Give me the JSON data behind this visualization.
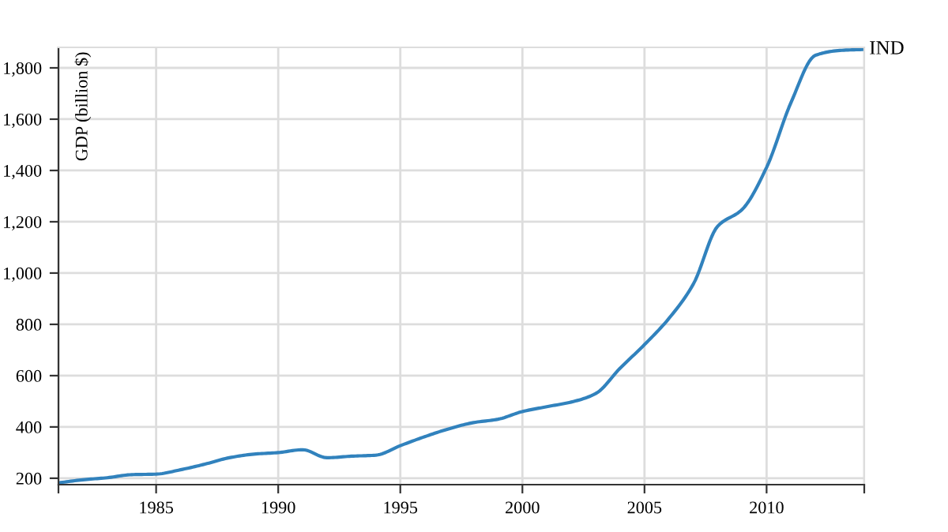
{
  "chart_data": {
    "type": "line",
    "ylabel": "GDP (billion $)",
    "x": [
      1981,
      1982,
      1983,
      1984,
      1985,
      1986,
      1987,
      1988,
      1989,
      1990,
      1991,
      1992,
      1993,
      1994,
      1995,
      1996,
      1997,
      1998,
      1999,
      2000,
      2001,
      2002,
      2003,
      2004,
      2005,
      2006,
      2007,
      2008,
      2009,
      2010,
      2011,
      2012,
      2013,
      2014
    ],
    "series": [
      {
        "name": "IND",
        "color": "#3182bd",
        "values": [
          182,
          194,
          202,
          214,
          216,
          233,
          255,
          280,
          294,
          300,
          311,
          280,
          286,
          290,
          327,
          362,
          393,
          417,
          430,
          460,
          479,
          497,
          530,
          629,
          721,
          823,
          957,
          1183,
          1248,
          1412,
          1665,
          1849,
          1868,
          1872
        ]
      }
    ],
    "xlim": [
      1981,
      2014
    ],
    "xticks": [
      {
        "value": 1981,
        "label": null
      },
      1985,
      1990,
      1995,
      2000,
      2005,
      2010,
      {
        "value": 2014,
        "label": null
      }
    ],
    "ylim": [
      175,
      1880
    ],
    "yticks": [
      200,
      400,
      600,
      800,
      {
        "value": 1000,
        "label": "1,000"
      },
      {
        "value": 1200,
        "label": "1,200"
      },
      {
        "value": 1400,
        "label": "1,400"
      },
      {
        "value": 1600,
        "label": "1,600"
      },
      {
        "value": 1800,
        "label": "1,800"
      }
    ],
    "grid": true,
    "legend": false,
    "marker": "none",
    "line_style": "solid"
  }
}
